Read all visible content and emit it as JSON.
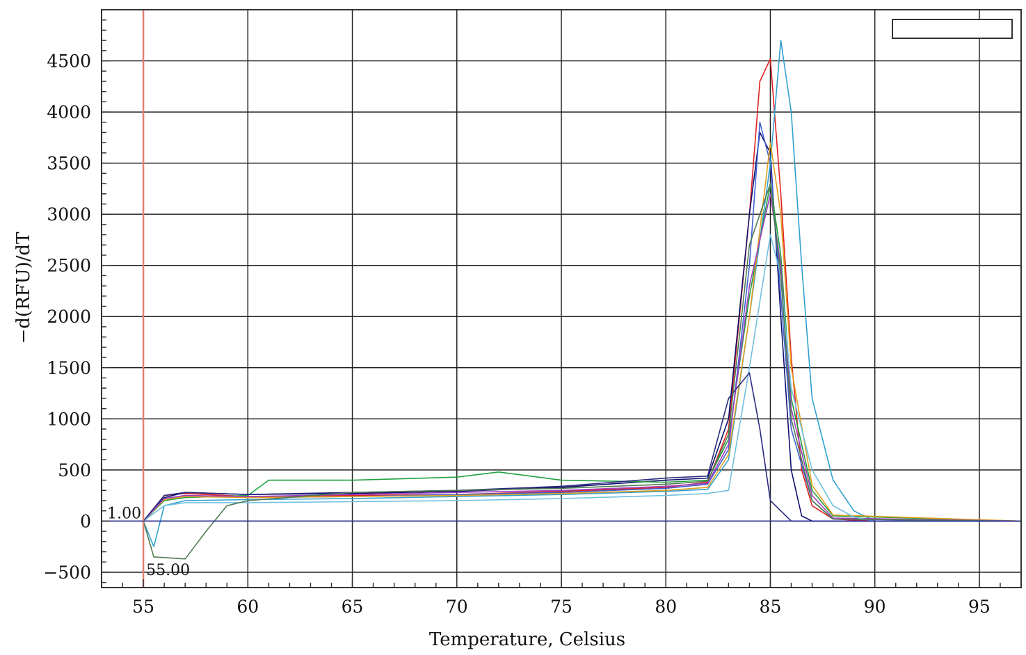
{
  "chart_data": {
    "type": "line",
    "title": "",
    "xlabel": "Temperature, Celsius",
    "ylabel": "−d(RFU)/dT",
    "xlim": [
      53,
      97
    ],
    "ylim": [
      -650,
      5000
    ],
    "x_ticks": [
      55,
      60,
      65,
      70,
      75,
      80,
      85,
      90,
      95
    ],
    "y_ticks": [
      -500,
      0,
      500,
      1000,
      1500,
      2000,
      2500,
      3000,
      3500,
      4000,
      4500
    ],
    "grid": true,
    "legend": "top-right (empty box)",
    "reference_line_x": 55,
    "reference_line_color": "#e08070",
    "baseline_y": 0,
    "baseline_color": "#3030a0",
    "annotations": [
      {
        "text": "1.00",
        "x": 55,
        "y": 0
      },
      {
        "text": "55.00",
        "x": 55,
        "y": -500
      }
    ],
    "peak_temperature_approx": 85,
    "series": [
      {
        "color": "#e02020",
        "values": [
          [
            55,
            0
          ],
          [
            56,
            250
          ],
          [
            57,
            270
          ],
          [
            60,
            240
          ],
          [
            65,
            250
          ],
          [
            70,
            260
          ],
          [
            75,
            290
          ],
          [
            80,
            330
          ],
          [
            82,
            380
          ],
          [
            83,
            900
          ],
          [
            84,
            3000
          ],
          [
            84.5,
            4300
          ],
          [
            85,
            4520
          ],
          [
            85.5,
            3200
          ],
          [
            86,
            1600
          ],
          [
            86.5,
            500
          ],
          [
            87,
            150
          ],
          [
            88,
            20
          ],
          [
            90,
            0
          ],
          [
            97,
            0
          ]
        ]
      },
      {
        "color": "#101070",
        "values": [
          [
            55,
            0
          ],
          [
            56,
            230
          ],
          [
            57,
            280
          ],
          [
            60,
            260
          ],
          [
            65,
            270
          ],
          [
            70,
            290
          ],
          [
            75,
            330
          ],
          [
            80,
            400
          ],
          [
            82,
            420
          ],
          [
            83,
            1000
          ],
          [
            84,
            3000
          ],
          [
            84.5,
            3800
          ],
          [
            85,
            3600
          ],
          [
            85.5,
            2000
          ],
          [
            86,
            500
          ],
          [
            86.5,
            50
          ],
          [
            87,
            0
          ],
          [
            97,
            0
          ]
        ]
      },
      {
        "color": "#4060d0",
        "values": [
          [
            55,
            0
          ],
          [
            56,
            220
          ],
          [
            57,
            250
          ],
          [
            60,
            230
          ],
          [
            65,
            240
          ],
          [
            70,
            260
          ],
          [
            75,
            280
          ],
          [
            80,
            320
          ],
          [
            82,
            360
          ],
          [
            83,
            700
          ],
          [
            84,
            2500
          ],
          [
            84.5,
            3900
          ],
          [
            85,
            3500
          ],
          [
            85.5,
            2200
          ],
          [
            86,
            900
          ],
          [
            87,
            200
          ],
          [
            88,
            20
          ],
          [
            97,
            0
          ]
        ]
      },
      {
        "color": "#30a0d0",
        "values": [
          [
            55,
            0
          ],
          [
            55.5,
            -250
          ],
          [
            56,
            150
          ],
          [
            57,
            200
          ],
          [
            60,
            210
          ],
          [
            65,
            220
          ],
          [
            70,
            240
          ],
          [
            75,
            260
          ],
          [
            80,
            290
          ],
          [
            82,
            310
          ],
          [
            83,
            600
          ],
          [
            84,
            2000
          ],
          [
            85,
            3500
          ],
          [
            85.5,
            4700
          ],
          [
            86,
            4000
          ],
          [
            86.5,
            2500
          ],
          [
            87,
            1200
          ],
          [
            88,
            400
          ],
          [
            89,
            100
          ],
          [
            90,
            0
          ],
          [
            97,
            0
          ]
        ]
      },
      {
        "color": "#20a040",
        "values": [
          [
            55,
            0
          ],
          [
            56,
            200
          ],
          [
            57,
            230
          ],
          [
            60,
            250
          ],
          [
            61,
            400
          ],
          [
            65,
            400
          ],
          [
            70,
            430
          ],
          [
            72,
            480
          ],
          [
            75,
            400
          ],
          [
            80,
            380
          ],
          [
            82,
            400
          ],
          [
            83,
            800
          ],
          [
            84,
            2200
          ],
          [
            85,
            3300
          ],
          [
            85.5,
            2600
          ],
          [
            86,
            1200
          ],
          [
            87,
            300
          ],
          [
            88,
            50
          ],
          [
            97,
            0
          ]
        ]
      },
      {
        "color": "#e0a020",
        "values": [
          [
            55,
            0
          ],
          [
            56,
            210
          ],
          [
            57,
            240
          ],
          [
            60,
            230
          ],
          [
            65,
            240
          ],
          [
            70,
            250
          ],
          [
            75,
            270
          ],
          [
            80,
            300
          ],
          [
            82,
            330
          ],
          [
            83,
            650
          ],
          [
            84,
            2000
          ],
          [
            85,
            3700
          ],
          [
            85.5,
            3000
          ],
          [
            86,
            1500
          ],
          [
            87,
            350
          ],
          [
            88,
            60
          ],
          [
            97,
            0
          ]
        ]
      },
      {
        "color": "#a040c0",
        "values": [
          [
            55,
            0
          ],
          [
            56,
            220
          ],
          [
            57,
            250
          ],
          [
            60,
            240
          ],
          [
            65,
            260
          ],
          [
            70,
            280
          ],
          [
            75,
            300
          ],
          [
            80,
            340
          ],
          [
            82,
            370
          ],
          [
            83,
            750
          ],
          [
            84,
            2300
          ],
          [
            85,
            3200
          ],
          [
            85.5,
            2500
          ],
          [
            86,
            1100
          ],
          [
            87,
            250
          ],
          [
            88,
            30
          ],
          [
            97,
            0
          ]
        ]
      },
      {
        "color": "#70c0e0",
        "values": [
          [
            55,
            0
          ],
          [
            56,
            150
          ],
          [
            57,
            180
          ],
          [
            60,
            180
          ],
          [
            65,
            190
          ],
          [
            70,
            200
          ],
          [
            75,
            220
          ],
          [
            80,
            250
          ],
          [
            82,
            270
          ],
          [
            83,
            300
          ],
          [
            84,
            1500
          ],
          [
            85,
            2800
          ],
          [
            85.5,
            2400
          ],
          [
            86,
            1300
          ],
          [
            87,
            500
          ],
          [
            88,
            150
          ],
          [
            89,
            40
          ],
          [
            90,
            0
          ],
          [
            97,
            0
          ]
        ]
      },
      {
        "color": "#2a2a80",
        "values": [
          [
            55,
            0
          ],
          [
            56,
            250
          ],
          [
            57,
            280
          ],
          [
            60,
            260
          ],
          [
            65,
            280
          ],
          [
            70,
            300
          ],
          [
            75,
            340
          ],
          [
            80,
            420
          ],
          [
            82,
            440
          ],
          [
            83,
            1200
          ],
          [
            84,
            1450
          ],
          [
            84.5,
            900
          ],
          [
            85,
            200
          ],
          [
            86,
            0
          ],
          [
            97,
            0
          ]
        ]
      },
      {
        "color": "#507a50",
        "values": [
          [
            55,
            0
          ],
          [
            55.5,
            -350
          ],
          [
            57,
            -370
          ],
          [
            58,
            -100
          ],
          [
            59,
            150
          ],
          [
            60,
            200
          ],
          [
            65,
            280
          ],
          [
            70,
            300
          ],
          [
            75,
            320
          ],
          [
            80,
            360
          ],
          [
            82,
            390
          ],
          [
            83,
            850
          ],
          [
            84,
            2700
          ],
          [
            85,
            3300
          ],
          [
            85.5,
            2400
          ],
          [
            86,
            1000
          ],
          [
            87,
            200
          ],
          [
            88,
            20
          ],
          [
            97,
            0
          ]
        ]
      }
    ]
  }
}
